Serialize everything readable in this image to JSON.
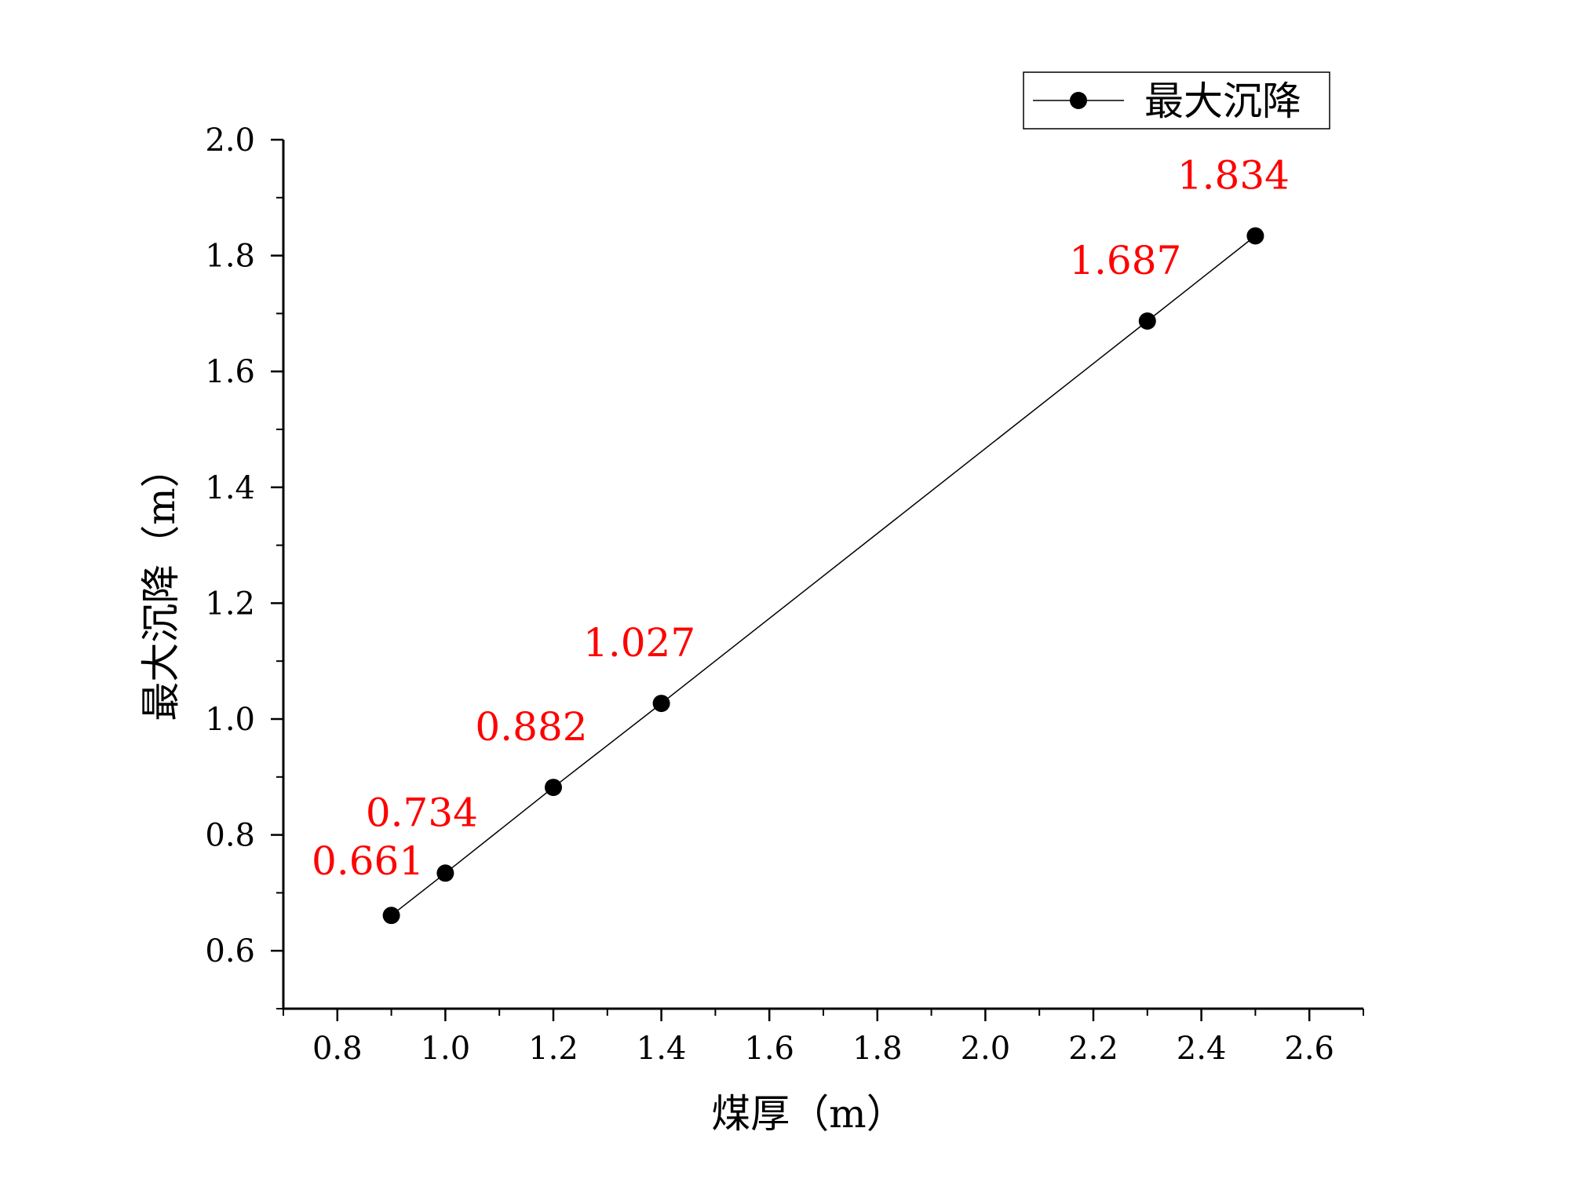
{
  "chart_data": {
    "type": "line",
    "title": "",
    "xlabel": "煤厚（m）",
    "ylabel": "最大沉降（m）",
    "xlim": [
      0.7,
      2.7
    ],
    "ylim": [
      0.5,
      2.0
    ],
    "xticks": [
      0.8,
      1.0,
      1.2,
      1.4,
      1.6,
      1.8,
      2.0,
      2.2,
      2.4,
      2.6
    ],
    "yticks": [
      0.6,
      0.8,
      1.0,
      1.2,
      1.4,
      1.6,
      1.8,
      2.0
    ],
    "x_tick_labels": [
      "0.8",
      "1.0",
      "1.2",
      "1.4",
      "1.6",
      "1.8",
      "2.0",
      "2.2",
      "2.4",
      "2.6"
    ],
    "y_tick_labels": [
      "0.6",
      "0.8",
      "1.0",
      "1.2",
      "1.4",
      "1.6",
      "1.8",
      "2.0"
    ],
    "grid": false,
    "legend_position": "top-right",
    "series": [
      {
        "name": "最大沉降",
        "color": "#000000",
        "marker": "circle",
        "x": [
          0.9,
          1.0,
          1.2,
          1.4,
          2.3,
          2.5
        ],
        "y": [
          0.661,
          0.734,
          0.882,
          1.027,
          1.687,
          1.834
        ]
      }
    ],
    "data_labels": [
      "0.661",
      "0.734",
      "0.882",
      "1.027",
      "1.687",
      "1.834"
    ],
    "data_label_color": "#ff0000"
  }
}
